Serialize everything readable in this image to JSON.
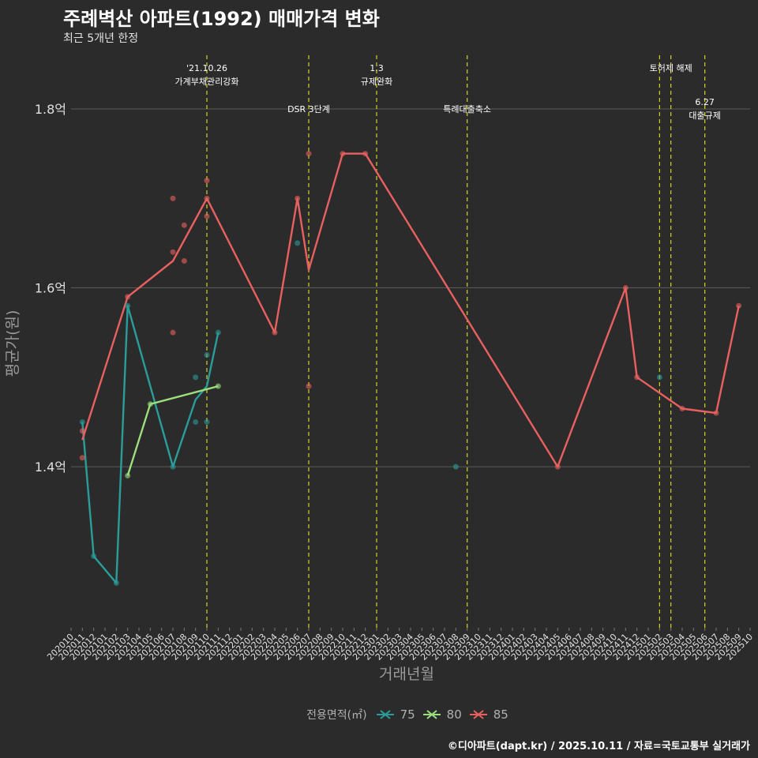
{
  "header": {
    "title": "주례벽산 아파트(1992) 매매가격 변화",
    "subtitle": "최근 5개년 한정"
  },
  "footer": {
    "credit": "©디아파트(dapt.kr) / 2025.10.11 / 자료=국토교통부 실거래가"
  },
  "legend": {
    "title": "전용면적(㎡)",
    "items": [
      {
        "label": "75",
        "color": "#2a9d9a"
      },
      {
        "label": "80",
        "color": "#9be07e"
      },
      {
        "label": "85",
        "color": "#e8605f"
      }
    ]
  },
  "chart_data": {
    "type": "line",
    "title": "주례벽산 아파트(1992) 매매가격 변화",
    "xlabel": "거래년월",
    "ylabel": "평균가(원)",
    "ylim": [
      1.22,
      1.86
    ],
    "yticks": [
      1.4,
      1.6,
      1.8
    ],
    "ytick_labels": [
      "1.4억",
      "1.6억",
      "1.8억"
    ],
    "x_categories": [
      "202010",
      "202011",
      "202012",
      "202101",
      "202102",
      "202103",
      "202104",
      "202105",
      "202106",
      "202107",
      "202108",
      "202109",
      "202110",
      "202111",
      "202112",
      "202201",
      "202202",
      "202203",
      "202204",
      "202205",
      "202206",
      "202207",
      "202208",
      "202209",
      "202210",
      "202211",
      "202212",
      "202301",
      "202302",
      "202303",
      "202304",
      "202305",
      "202306",
      "202307",
      "202308",
      "202309",
      "202310",
      "202311",
      "202312",
      "202401",
      "202402",
      "202403",
      "202404",
      "202405",
      "202406",
      "202407",
      "202408",
      "202409",
      "202410",
      "202411",
      "202412",
      "202501",
      "202502",
      "202503",
      "202504",
      "202505",
      "202506",
      "202507",
      "202508",
      "202509",
      "202510"
    ],
    "series": [
      {
        "name": "75",
        "color": "#2a9d9a",
        "line": [
          [
            "202011",
            1.45
          ],
          [
            "202012",
            1.3
          ],
          [
            "202102",
            1.27
          ],
          [
            "202103",
            1.58
          ],
          [
            "202107",
            1.4
          ],
          [
            "202109",
            1.475
          ],
          [
            "202110",
            1.49
          ],
          [
            "202111",
            1.55
          ]
        ],
        "points": [
          [
            "202011",
            1.45
          ],
          [
            "202012",
            1.3
          ],
          [
            "202102",
            1.27
          ],
          [
            "202103",
            1.58
          ],
          [
            "202107",
            1.4
          ],
          [
            "202109",
            1.5
          ],
          [
            "202109",
            1.45
          ],
          [
            "202110",
            1.525
          ],
          [
            "202110",
            1.45
          ],
          [
            "202111",
            1.55
          ],
          [
            "202206",
            1.65
          ],
          [
            "202308",
            1.4
          ],
          [
            "202502",
            1.5
          ]
        ]
      },
      {
        "name": "80",
        "color": "#9be07e",
        "line": [
          [
            "202103",
            1.39
          ],
          [
            "202105",
            1.47
          ],
          [
            "202111",
            1.49
          ]
        ],
        "points": [
          [
            "202103",
            1.39
          ],
          [
            "202105",
            1.47
          ],
          [
            "202111",
            1.49
          ]
        ]
      },
      {
        "name": "85",
        "color": "#e8605f",
        "line": [
          [
            "202011",
            1.43
          ],
          [
            "202103",
            1.59
          ],
          [
            "202107",
            1.63
          ],
          [
            "202110",
            1.7
          ],
          [
            "202204",
            1.55
          ],
          [
            "202206",
            1.7
          ],
          [
            "202207",
            1.62
          ],
          [
            "202210",
            1.75
          ],
          [
            "202212",
            1.75
          ],
          [
            "202405",
            1.4
          ],
          [
            "202411",
            1.6
          ],
          [
            "202412",
            1.5
          ],
          [
            "202504",
            1.465
          ],
          [
            "202507",
            1.46
          ],
          [
            "202509",
            1.58
          ]
        ],
        "points": [
          [
            "202011",
            1.44
          ],
          [
            "202011",
            1.41
          ],
          [
            "202103",
            1.59
          ],
          [
            "202107",
            1.7
          ],
          [
            "202107",
            1.64
          ],
          [
            "202107",
            1.55
          ],
          [
            "202108",
            1.67
          ],
          [
            "202108",
            1.63
          ],
          [
            "202110",
            1.72
          ],
          [
            "202110",
            1.68
          ],
          [
            "202110",
            1.7
          ],
          [
            "202204",
            1.55
          ],
          [
            "202206",
            1.7
          ],
          [
            "202207",
            1.75
          ],
          [
            "202207",
            1.49
          ],
          [
            "202210",
            1.75
          ],
          [
            "202212",
            1.75
          ],
          [
            "202405",
            1.4
          ],
          [
            "202411",
            1.6
          ],
          [
            "202412",
            1.5
          ],
          [
            "202504",
            1.465
          ],
          [
            "202507",
            1.46
          ],
          [
            "202509",
            1.58
          ]
        ]
      }
    ],
    "events": [
      {
        "x": "202110",
        "lines": [
          "'21.10.26",
          "가계부채관리강화"
        ],
        "row": 0
      },
      {
        "x": "202207",
        "lines": [
          "DSR 3단계"
        ],
        "row": 1
      },
      {
        "x": "202301",
        "lines": [
          "1.3",
          "규제완화"
        ],
        "row": 0
      },
      {
        "x": "202309",
        "lines": [
          "특례대출축소"
        ],
        "row": 1
      },
      {
        "x": "202502",
        "lines": [],
        "row": 0
      },
      {
        "x": "202503",
        "lines": [
          "토허제 해제"
        ],
        "row": 0
      },
      {
        "x": "202506",
        "lines": [
          "6.27",
          "대출규제"
        ],
        "row": 2
      }
    ],
    "grid": true
  }
}
